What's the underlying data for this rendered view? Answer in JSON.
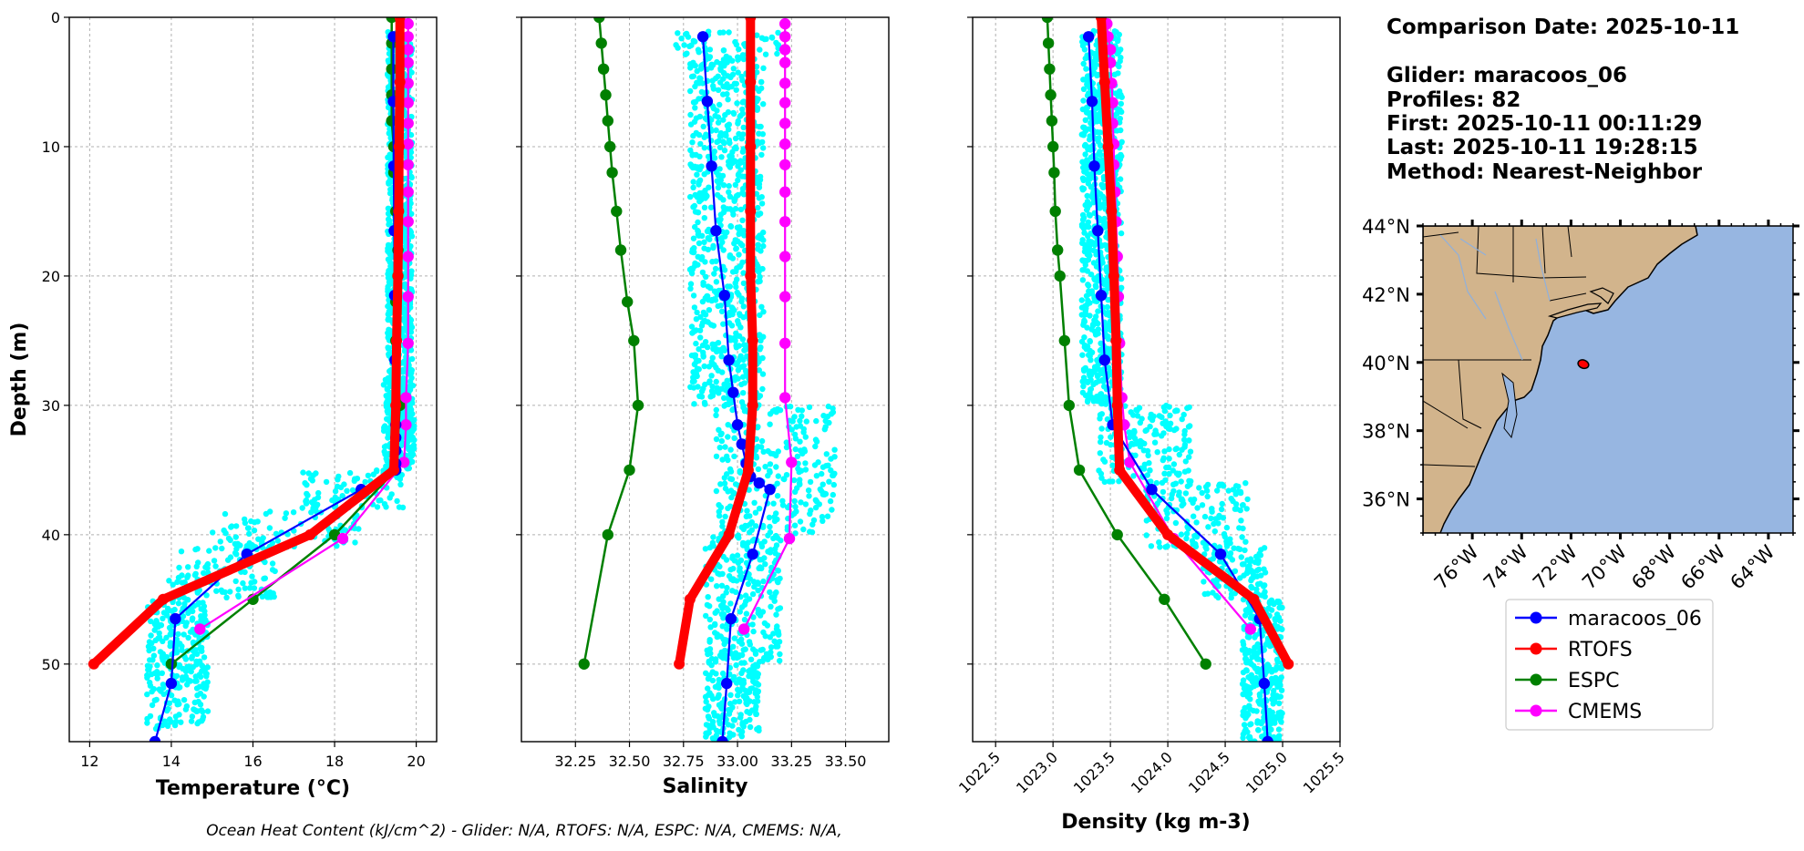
{
  "header": {
    "comparison_date": "Comparison Date: 2025-10-11",
    "glider": "Glider: maracoos_06",
    "profiles": "Profiles: 82",
    "first": "First: 2025-10-11 00:11:29",
    "last": "Last: 2025-10-11 19:28:15",
    "method": "Method: Nearest-Neighbor"
  },
  "footer": {
    "ohc_text": "Ocean Heat Content (kJ/cm^2) - Glider: N/A,  RTOFS: N/A,  ESPC: N/A,  CMEMS: N/A,"
  },
  "colors": {
    "glider": "#0000ff",
    "rtofs": "#ff0000",
    "espc": "#008000",
    "cmems": "#ff00ff",
    "scatter": "#00ffff",
    "land": "#d2b48c",
    "ocean": "#97b6e1",
    "grid": "#b0b0b0"
  },
  "legend": {
    "items": [
      {
        "label": "maracoos_06",
        "color": "#0000ff"
      },
      {
        "label": "RTOFS",
        "color": "#ff0000"
      },
      {
        "label": "ESPC",
        "color": "#008000"
      },
      {
        "label": "CMEMS",
        "color": "#ff00ff"
      }
    ]
  },
  "map": {
    "lon_range": [
      -78,
      -63
    ],
    "lat_range": [
      35,
      44
    ],
    "lat_ticks": [
      36,
      38,
      40,
      42,
      44
    ],
    "lat_tick_labels": [
      "36°N",
      "38°N",
      "40°N",
      "42°N",
      "44°N"
    ],
    "lon_ticks": [
      -76,
      -74,
      -72,
      -70,
      -68,
      -66,
      -64
    ],
    "lon_tick_labels": [
      "76°W",
      "74°W",
      "72°W",
      "70°W",
      "68°W",
      "66°W",
      "64°W"
    ],
    "glider_position": {
      "lon": -71.5,
      "lat": 39.95
    }
  },
  "chart_data": [
    {
      "type": "line",
      "xlabel": "Temperature (°C)",
      "ylabel": "Depth (m)",
      "xlim": [
        11.5,
        20.5
      ],
      "ylim": [
        56,
        0
      ],
      "xticks": [
        12,
        14,
        16,
        18,
        20
      ],
      "xtick_labels": [
        "12",
        "14",
        "16",
        "18",
        "20"
      ],
      "yticks": [
        0,
        10,
        20,
        30,
        40,
        50
      ],
      "ytick_labels": [
        "0",
        "10",
        "20",
        "30",
        "40",
        "50"
      ],
      "grid": true,
      "scatter": {
        "name": "",
        "depth_bands": [
          {
            "d": [
              1,
              33
            ],
            "x": [
              19.3,
              19.9
            ]
          },
          {
            "d": [
              28,
              35
            ],
            "x": [
              19.2,
              19.95
            ]
          },
          {
            "d": [
              35,
              38
            ],
            "x": [
              17.2,
              19.7
            ]
          },
          {
            "d": [
              38,
              41
            ],
            "x": [
              15.0,
              18.6
            ]
          },
          {
            "d": [
              41,
              45
            ],
            "x": [
              13.9,
              16.6
            ]
          },
          {
            "d": [
              45,
              55
            ],
            "x": [
              13.4,
              14.9
            ]
          }
        ]
      },
      "series": [
        {
          "name": "maracoos_06",
          "color": "#0000ff",
          "x": [
            19.44,
            19.44,
            19.45,
            19.46,
            19.47,
            19.48,
            19.5,
            19.5,
            19.5,
            19.5,
            19.5,
            18.65,
            15.85,
            14.1,
            14.0,
            13.6
          ],
          "y": [
            1.5,
            6.5,
            11.5,
            16.5,
            21.5,
            26.5,
            31.5,
            32.5,
            33.5,
            34.5,
            35.0,
            36.5,
            41.5,
            46.5,
            51.5,
            56.0
          ]
        },
        {
          "name": "RTOFS",
          "color": "#ff0000",
          "x": [
            19.6,
            19.6,
            19.58,
            19.57,
            19.55,
            19.52,
            19.5,
            19.45,
            17.4,
            13.8,
            12.1
          ],
          "y": [
            0,
            5,
            10,
            15,
            20,
            25,
            30,
            35,
            40,
            45,
            50
          ]
        },
        {
          "name": "ESPC",
          "color": "#008000",
          "x": [
            19.4,
            19.4,
            19.4,
            19.4,
            19.4,
            19.45,
            19.45,
            19.5,
            19.55,
            19.55,
            19.5,
            19.5,
            19.6,
            19.5,
            18.0,
            16.0,
            14.0
          ],
          "y": [
            0,
            2,
            4,
            6,
            8,
            10,
            12,
            15,
            18,
            20,
            22,
            25,
            30,
            35,
            40,
            45,
            50
          ]
        },
        {
          "name": "CMEMS",
          "color": "#ff00ff",
          "x": [
            19.8,
            19.8,
            19.8,
            19.8,
            19.8,
            19.8,
            19.8,
            19.8,
            19.8,
            19.8,
            19.8,
            19.8,
            19.8,
            19.8,
            19.75,
            19.75,
            19.7,
            18.2,
            14.7
          ],
          "y": [
            0.5,
            1.5,
            2.5,
            3.5,
            5.1,
            6.6,
            8.2,
            9.8,
            11.4,
            13.5,
            15.8,
            18.5,
            21.6,
            25.2,
            29.4,
            31.5,
            34.4,
            40.3,
            47.3
          ]
        }
      ]
    },
    {
      "type": "line",
      "xlabel": "Salinity",
      "ylabel": "",
      "xlim": [
        32.0,
        33.7
      ],
      "ylim": [
        56,
        0
      ],
      "xticks": [
        32.25,
        32.5,
        32.75,
        33.0,
        33.25,
        33.5
      ],
      "xtick_labels": [
        "32.25",
        "32.50",
        "32.75",
        "33.00",
        "33.25",
        "33.50"
      ],
      "yticks": [
        0,
        10,
        20,
        30,
        40,
        50
      ],
      "grid": true,
      "scatter": {
        "name": "",
        "depth_bands": [
          {
            "d": [
              1,
              3
            ],
            "x": [
              32.7,
              33.2
            ]
          },
          {
            "d": [
              3,
              30
            ],
            "x": [
              32.78,
              33.12
            ]
          },
          {
            "d": [
              30,
              40
            ],
            "x": [
              32.9,
              33.45
            ]
          },
          {
            "d": [
              40,
              50
            ],
            "x": [
              32.85,
              33.2
            ]
          },
          {
            "d": [
              50,
              56
            ],
            "x": [
              32.85,
              33.1
            ]
          }
        ]
      },
      "series": [
        {
          "name": "maracoos_06",
          "color": "#0000ff",
          "x": [
            32.84,
            32.86,
            32.88,
            32.9,
            32.94,
            32.96,
            32.98,
            33.0,
            33.02,
            33.04,
            33.06,
            33.1,
            33.15,
            33.07,
            32.97,
            32.95,
            32.93
          ],
          "y": [
            1.5,
            6.5,
            11.5,
            16.5,
            21.5,
            26.5,
            29.0,
            31.5,
            33.0,
            34.5,
            35.5,
            36.0,
            36.5,
            41.5,
            46.5,
            51.5,
            56.0
          ]
        },
        {
          "name": "RTOFS",
          "color": "#ff0000",
          "x": [
            33.06,
            33.06,
            33.06,
            33.06,
            33.06,
            33.07,
            33.07,
            33.05,
            32.96,
            32.78,
            32.73
          ],
          "y": [
            0,
            5,
            10,
            15,
            20,
            25,
            30,
            35,
            40,
            45,
            50
          ]
        },
        {
          "name": "ESPC",
          "color": "#008000",
          "x": [
            32.36,
            32.37,
            32.38,
            32.39,
            32.4,
            32.41,
            32.42,
            32.44,
            32.46,
            32.49,
            32.52,
            32.54,
            32.5,
            32.4,
            32.29
          ],
          "y": [
            0,
            2,
            4,
            6,
            8,
            10,
            12,
            15,
            18,
            22,
            25,
            30,
            35,
            40,
            50
          ]
        },
        {
          "name": "CMEMS",
          "color": "#ff00ff",
          "x": [
            33.22,
            33.22,
            33.22,
            33.22,
            33.22,
            33.22,
            33.22,
            33.22,
            33.22,
            33.22,
            33.22,
            33.22,
            33.22,
            33.22,
            33.22,
            33.25,
            33.24,
            33.03
          ],
          "y": [
            0.5,
            1.5,
            2.5,
            3.5,
            5.1,
            6.6,
            8.2,
            9.8,
            11.4,
            13.5,
            15.8,
            18.5,
            21.6,
            25.2,
            29.4,
            34.4,
            40.3,
            47.3
          ]
        }
      ]
    },
    {
      "type": "line",
      "xlabel": "Density (kg m-3)",
      "ylabel": "",
      "xlim": [
        1022.3,
        1025.5
      ],
      "ylim": [
        56,
        0
      ],
      "xticks": [
        1022.5,
        1023.0,
        1023.5,
        1024.0,
        1024.5,
        1025.0,
        1025.5
      ],
      "xtick_labels": [
        "1022.5",
        "1023.0",
        "1023.5",
        "1024.0",
        "1024.5",
        "1025.0",
        "1025.5"
      ],
      "yticks": [
        0,
        10,
        20,
        30,
        40,
        50
      ],
      "grid": true,
      "scatter": {
        "name": "",
        "depth_bands": [
          {
            "d": [
              1,
              30
            ],
            "x": [
              1023.25,
              1023.6
            ]
          },
          {
            "d": [
              30,
              36
            ],
            "x": [
              1023.4,
              1024.2
            ]
          },
          {
            "d": [
              36,
              41
            ],
            "x": [
              1023.8,
              1024.7
            ]
          },
          {
            "d": [
              41,
              45
            ],
            "x": [
              1024.3,
              1024.85
            ]
          },
          {
            "d": [
              45,
              56
            ],
            "x": [
              1024.65,
              1025.0
            ]
          }
        ]
      },
      "series": [
        {
          "name": "maracoos_06",
          "color": "#0000ff",
          "x": [
            1023.31,
            1023.34,
            1023.36,
            1023.39,
            1023.42,
            1023.45,
            1023.52,
            1023.86,
            1024.46,
            1024.8,
            1024.84,
            1024.87
          ],
          "y": [
            1.5,
            6.5,
            11.5,
            16.5,
            21.5,
            26.5,
            31.5,
            36.5,
            41.5,
            46.5,
            51.5,
            56.0
          ]
        },
        {
          "name": "RTOFS",
          "color": "#ff0000",
          "x": [
            1023.42,
            1023.45,
            1023.48,
            1023.51,
            1023.53,
            1023.55,
            1023.56,
            1023.58,
            1024.0,
            1024.75,
            1025.05
          ],
          "y": [
            0,
            5,
            10,
            15,
            20,
            25,
            30,
            35,
            40,
            45,
            50
          ]
        },
        {
          "name": "ESPC",
          "color": "#008000",
          "x": [
            1022.95,
            1022.96,
            1022.97,
            1022.98,
            1022.99,
            1023.0,
            1023.01,
            1023.02,
            1023.04,
            1023.06,
            1023.1,
            1023.14,
            1023.23,
            1023.56,
            1023.97,
            1024.33
          ],
          "y": [
            0,
            2,
            4,
            6,
            8,
            10,
            12,
            15,
            18,
            20,
            25,
            30,
            35,
            40,
            45,
            50
          ]
        },
        {
          "name": "CMEMS",
          "color": "#ff00ff",
          "x": [
            1023.47,
            1023.48,
            1023.5,
            1023.5,
            1023.51,
            1023.52,
            1023.52,
            1023.53,
            1023.53,
            1023.54,
            1023.55,
            1023.56,
            1023.57,
            1023.58,
            1023.6,
            1023.62,
            1023.67,
            1024.05,
            1024.72
          ],
          "y": [
            0.5,
            1.5,
            2.5,
            3.5,
            5.1,
            6.6,
            8.2,
            9.8,
            11.4,
            13.5,
            15.8,
            18.5,
            21.6,
            25.2,
            29.4,
            31.5,
            34.4,
            40.3,
            47.3
          ]
        }
      ]
    }
  ]
}
